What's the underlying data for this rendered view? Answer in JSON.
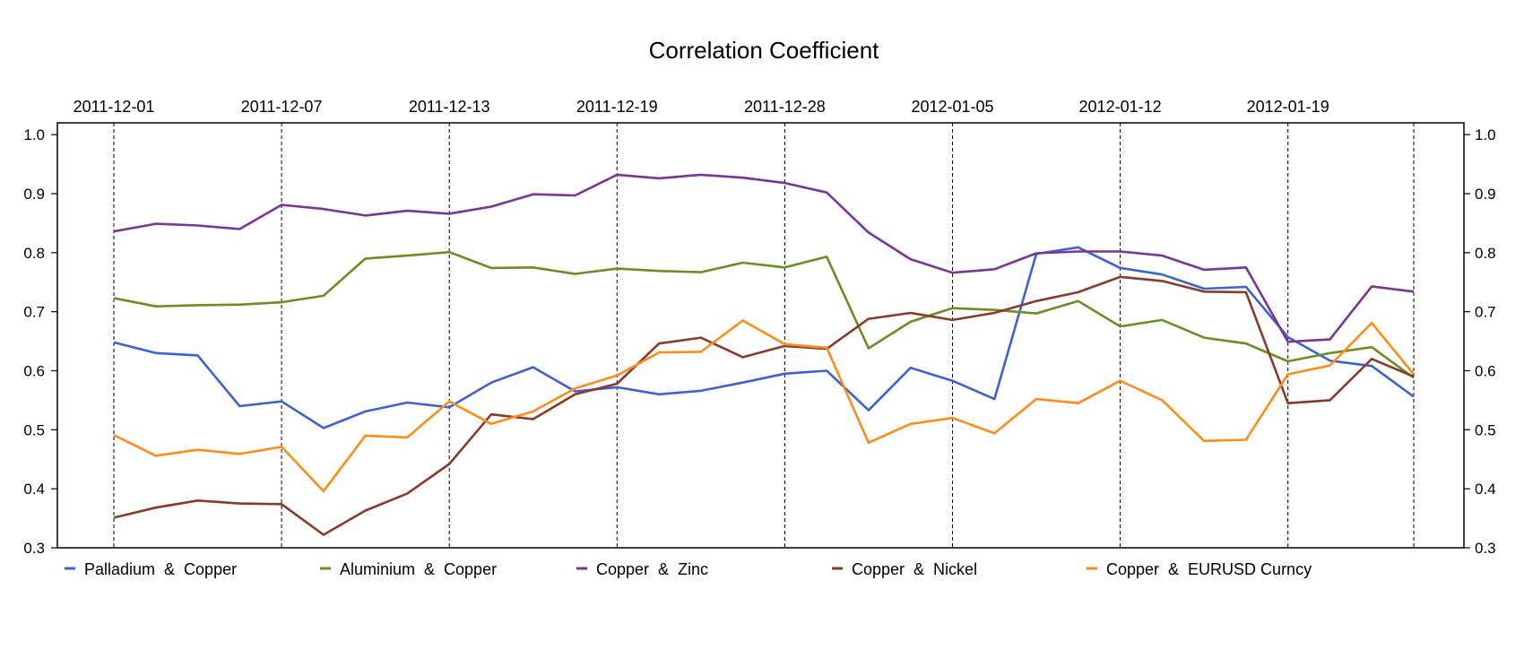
{
  "chart_data": {
    "type": "line",
    "title": "Correlation Coefficient",
    "xlabel": "",
    "ylabel": "",
    "ylim": [
      0.3,
      1.02
    ],
    "y_ticks": [
      0.3,
      0.4,
      0.5,
      0.6,
      0.7,
      0.8,
      0.9,
      1.0
    ],
    "y_tick_labels": [
      "0.3",
      "0.4",
      "0.5",
      "0.6",
      "0.7",
      "0.8",
      "0.9",
      "1.0"
    ],
    "y_axis_both_sides": true,
    "x_axis_position": "top",
    "x_tick_indices": [
      0,
      4,
      8,
      12,
      16,
      20,
      24,
      28,
      31
    ],
    "x_tick_labels": [
      "2011-12-01",
      "2011-12-07",
      "2011-12-13",
      "2011-12-19",
      "2011-12-28",
      "2012-01-05",
      "2012-01-12",
      "2012-01-19",
      ""
    ],
    "vertical_gridlines": "dashed at x ticks",
    "legend_position": "bottom",
    "series": [
      {
        "name": "Palladium  &  Copper",
        "color": "#3a62d4",
        "values": [
          0.648,
          0.63,
          0.626,
          0.54,
          0.548,
          0.503,
          0.531,
          0.546,
          0.538,
          0.58,
          0.606,
          0.565,
          0.572,
          0.56,
          0.566,
          0.58,
          0.595,
          0.6,
          0.533,
          0.605,
          0.583,
          0.552,
          0.798,
          0.809,
          0.774,
          0.763,
          0.739,
          0.742,
          0.657,
          0.617,
          0.608,
          0.556
        ]
      },
      {
        "name": "Aluminium  &  Copper",
        "color": "#6b8e23",
        "values": [
          0.723,
          0.709,
          0.711,
          0.712,
          0.716,
          0.727,
          0.79,
          0.795,
          0.801,
          0.774,
          0.775,
          0.764,
          0.773,
          0.769,
          0.767,
          0.783,
          0.775,
          0.793,
          0.638,
          0.683,
          0.706,
          0.703,
          0.697,
          0.718,
          0.675,
          0.686,
          0.656,
          0.646,
          0.616,
          0.63,
          0.64,
          0.588
        ]
      },
      {
        "name": "Copper  &  Zinc",
        "color": "#7a3595",
        "values": [
          0.836,
          0.849,
          0.846,
          0.84,
          0.881,
          0.874,
          0.863,
          0.871,
          0.866,
          0.878,
          0.899,
          0.897,
          0.932,
          0.926,
          0.932,
          0.927,
          0.918,
          0.902,
          0.834,
          0.789,
          0.766,
          0.772,
          0.799,
          0.802,
          0.802,
          0.795,
          0.771,
          0.775,
          0.649,
          0.653,
          0.743,
          0.734
        ]
      },
      {
        "name": "Copper  &  Nickel",
        "color": "#8b3a2a",
        "values": [
          0.351,
          0.368,
          0.38,
          0.375,
          0.374,
          0.322,
          0.363,
          0.392,
          0.442,
          0.526,
          0.518,
          0.56,
          0.578,
          0.646,
          0.656,
          0.623,
          0.642,
          0.637,
          0.688,
          0.698,
          0.686,
          0.698,
          0.718,
          0.733,
          0.759,
          0.752,
          0.734,
          0.733,
          0.545,
          0.55,
          0.62,
          0.59
        ]
      },
      {
        "name": "Copper  &  EURUSD Curncy",
        "color": "#ff8c1a",
        "values": [
          0.491,
          0.456,
          0.466,
          0.459,
          0.471,
          0.396,
          0.49,
          0.487,
          0.548,
          0.51,
          0.531,
          0.57,
          0.592,
          0.631,
          0.632,
          0.685,
          0.645,
          0.639,
          0.478,
          0.51,
          0.52,
          0.494,
          0.552,
          0.545,
          0.583,
          0.55,
          0.481,
          0.483,
          0.594,
          0.609,
          0.681,
          0.594
        ]
      }
    ]
  }
}
